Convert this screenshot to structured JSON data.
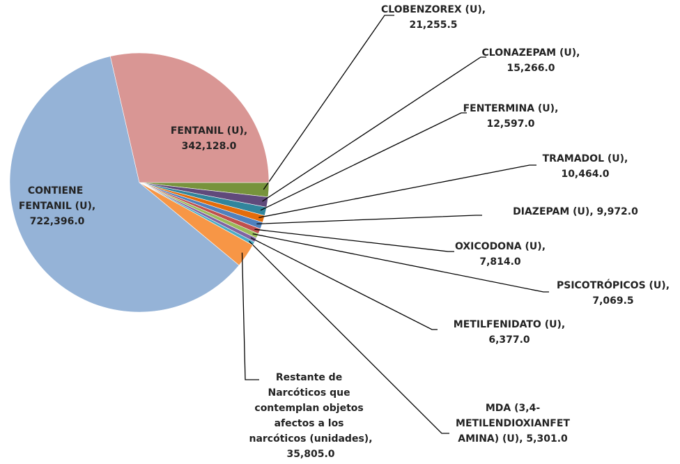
{
  "chart_data": {
    "type": "pie",
    "categories": [
      "CLOBENZOREX (U)",
      "CLONAZEPAM (U)",
      "FENTERMINA (U)",
      "TRAMADOL (U)",
      "DIAZEPAM (U)",
      "OXICODONA (U)",
      "PSICOTRÓPICOS (U)",
      "METILFENIDATO (U)",
      "MDA (3,4-METILENDIOXIANFETAMINA) (U)",
      "Restante de Narcóticos que contemplan objetos afectos a los narcóticos (unidades)",
      "CONTIENE FENTANIL (U)",
      "FENTANIL (U)"
    ],
    "values": [
      21255.5,
      15266.0,
      12597.0,
      10464.0,
      9972.0,
      7814.0,
      7069.5,
      6377.0,
      5301.0,
      35805.0,
      722396.0,
      342128.0
    ],
    "value_labels": [
      "21,255.5",
      "15,266.0",
      "12,597.0",
      "10,464.0",
      "9,972.0",
      "7,814.0",
      "7,069.5",
      "6,377.0",
      "5,301.0",
      "35,805.0",
      "722,396.0",
      "342,128.0"
    ],
    "label_separator": ",",
    "colors": [
      "#77933c",
      "#604a7b",
      "#31859c",
      "#e46c0a",
      "#4f81bd",
      "#c0504d",
      "#9bbb59",
      "#8064a2",
      "#4bacc6",
      "#f79646",
      "#95b3d7",
      "#d99694"
    ]
  }
}
